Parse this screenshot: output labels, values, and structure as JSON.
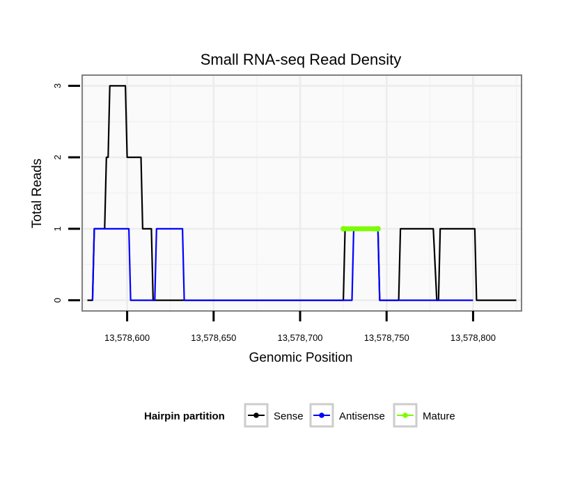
{
  "chart_data": {
    "type": "line",
    "title": "Small RNA-seq Read Density",
    "xlabel": "Genomic Position",
    "ylabel": "Total Reads",
    "xlim": [
      13578574,
      13578828
    ],
    "ylim": [
      -0.15,
      3.15
    ],
    "x_ticks": [
      13578600,
      13578650,
      13578700,
      13578750,
      13578800
    ],
    "x_tick_labels": [
      "13,578,600",
      "13,578,650",
      "13,578,700",
      "13,578,750",
      "13,578,800"
    ],
    "y_ticks": [
      0,
      1,
      2,
      3
    ],
    "y_tick_labels": [
      "0",
      "1",
      "2",
      "3"
    ],
    "grid": true,
    "legend": {
      "title": "Hairpin partition",
      "position": "bottom"
    },
    "series": [
      {
        "name": "Sense",
        "color": "#000000",
        "x": [
          13578577,
          13578580,
          13578581,
          13578587,
          13578588,
          13578589,
          13578590,
          13578591,
          13578598,
          13578599,
          13578600,
          13578607,
          13578608,
          13578609,
          13578614,
          13578615,
          13578725,
          13578726,
          13578745,
          13578746,
          13578757,
          13578758,
          13578777,
          13578779,
          13578780,
          13578781,
          13578801,
          13578802,
          13578825
        ],
        "values": [
          0,
          0,
          1,
          1,
          2,
          2,
          3,
          3,
          3,
          3,
          2,
          2,
          2,
          1,
          1,
          0,
          0,
          1,
          1,
          0,
          0,
          1,
          1,
          0,
          0,
          1,
          1,
          0,
          0
        ]
      },
      {
        "name": "Antisense",
        "color": "#0000ff",
        "x": [
          13578580,
          13578581,
          13578601,
          13578602,
          13578616,
          13578617,
          13578632,
          13578633,
          13578730,
          13578731,
          13578745,
          13578746,
          13578800
        ],
        "values": [
          0,
          1,
          1,
          0,
          0,
          1,
          1,
          0,
          0,
          1,
          1,
          0,
          0
        ]
      },
      {
        "name": "Mature",
        "color": "#7cfc00",
        "x": [
          13578725,
          13578745
        ],
        "values": [
          1,
          1
        ]
      }
    ]
  }
}
